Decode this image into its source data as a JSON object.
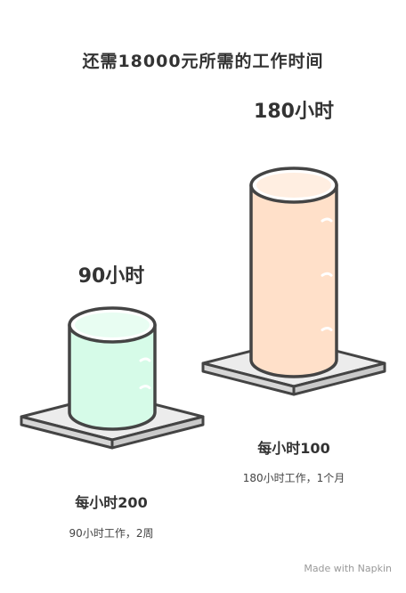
{
  "chart_data": {
    "type": "bar",
    "title": "还需18000元所需的工作时间",
    "categories": [
      "每小时200",
      "每小时100"
    ],
    "values": [
      90,
      180
    ],
    "value_labels": [
      "90小时",
      "180小时"
    ],
    "descriptions": [
      "90小时工作，2周",
      "180小时工作，1个月"
    ],
    "colors": [
      "#d6fbe8",
      "#ffe0c9"
    ],
    "ylim": [
      0,
      180
    ]
  },
  "footer": "Made with Napkin"
}
